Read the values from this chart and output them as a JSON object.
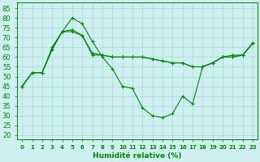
{
  "xlabel": "Humidité relative (%)",
  "background_color": "#cff0f0",
  "grid_color": "#a8d8d8",
  "line_color": "#008800",
  "xlim": [
    -0.5,
    23.5
  ],
  "ylim": [
    18,
    88
  ],
  "yticks": [
    20,
    25,
    30,
    35,
    40,
    45,
    50,
    55,
    60,
    65,
    70,
    75,
    80,
    85
  ],
  "xticks": [
    0,
    1,
    2,
    3,
    4,
    5,
    6,
    7,
    8,
    9,
    10,
    11,
    12,
    13,
    14,
    15,
    16,
    17,
    18,
    19,
    20,
    21,
    22,
    23
  ],
  "series": [
    {
      "x": [
        0,
        1,
        2,
        3,
        4,
        5,
        6,
        7,
        8,
        9,
        10,
        11,
        12,
        13,
        14,
        15,
        16,
        17,
        18,
        19,
        20,
        21,
        22,
        23
      ],
      "y": [
        45,
        52,
        52,
        65,
        73,
        80,
        77,
        68,
        60,
        54,
        45,
        44,
        34,
        30,
        29,
        31,
        40,
        36,
        55,
        57,
        60,
        61,
        61,
        67
      ]
    },
    {
      "x": [
        0,
        1,
        2,
        3,
        4,
        5,
        6,
        7,
        8,
        9,
        10,
        11,
        12,
        13,
        14,
        15,
        16,
        17,
        18,
        19,
        20,
        21,
        22,
        23
      ],
      "y": [
        45,
        52,
        52,
        64,
        73,
        74,
        71,
        62,
        61,
        60,
        60,
        60,
        60,
        59,
        58,
        57,
        57,
        55,
        55,
        57,
        60,
        60,
        61,
        67
      ]
    },
    {
      "x": [
        0,
        1,
        2,
        3,
        4,
        5,
        6,
        7,
        8,
        9,
        10,
        11,
        12,
        13,
        14,
        15,
        16,
        17,
        18,
        19,
        20,
        21,
        22,
        23
      ],
      "y": [
        45,
        52,
        52,
        64,
        73,
        73,
        71,
        61,
        61,
        60,
        60,
        60,
        60,
        59,
        58,
        57,
        57,
        55,
        55,
        57,
        60,
        60,
        61,
        67
      ]
    }
  ]
}
